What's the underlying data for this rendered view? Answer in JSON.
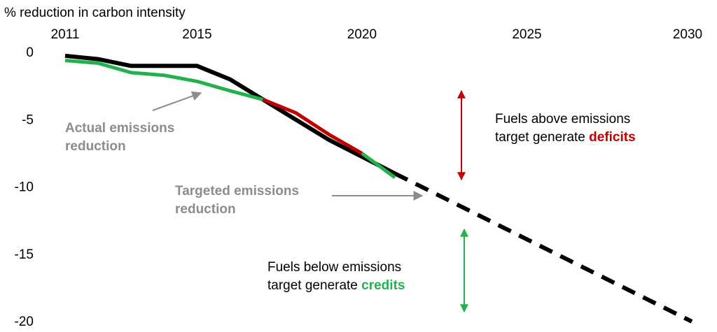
{
  "chart_data": {
    "type": "line",
    "ylabel": "% reduction in carbon intensity",
    "xlim": [
      2010.7,
      2030.3
    ],
    "ylim": [
      -20,
      0
    ],
    "x_ticks": [
      2011,
      2015,
      2020,
      2025,
      2030
    ],
    "y_ticks": [
      0,
      -5,
      -10,
      -15,
      -20
    ],
    "grid": false,
    "series": [
      {
        "name": "Targeted emissions reduction",
        "color": "#000000",
        "style": "solid",
        "x": [
          2011,
          2012,
          2013,
          2014,
          2015,
          2016,
          2017,
          2018,
          2019,
          2020,
          2021
        ],
        "y": [
          -0.25,
          -0.5,
          -1.0,
          -1.0,
          -1.0,
          -2.0,
          -3.5,
          -5.0,
          -6.5,
          -7.75,
          -9.0
        ]
      },
      {
        "name": "Targeted emissions reduction (projected)",
        "color": "#000000",
        "style": "dashed",
        "x": [
          2021,
          2030
        ],
        "y": [
          -9.0,
          -20.0
        ]
      },
      {
        "name": "Actual emissions reduction",
        "color": "#22b14c",
        "style": "solid",
        "x": [
          2011,
          2012,
          2013,
          2014,
          2015,
          2016,
          2017
        ],
        "y": [
          -0.6,
          -0.8,
          -1.5,
          -1.7,
          -2.15,
          -2.85,
          -3.5
        ]
      },
      {
        "name": "Actual emissions reduction (above target)",
        "color": "#c00000",
        "style": "solid",
        "x": [
          2017,
          2018,
          2019,
          2020
        ],
        "y": [
          -3.5,
          -4.5,
          -6.1,
          -7.5
        ]
      },
      {
        "name": "Actual emissions reduction (below target)",
        "color": "#22b14c",
        "style": "solid",
        "x": [
          2020,
          2021
        ],
        "y": [
          -7.5,
          -9.3
        ]
      }
    ],
    "annotations": {
      "actual": {
        "line1": "Actual emissions",
        "line2": "reduction"
      },
      "targeted": {
        "line1": "Targeted emissions",
        "line2": "reduction"
      },
      "above": {
        "line1": "Fuels above emissions",
        "line2_prefix": "target generate ",
        "line2_emph": "deficits"
      },
      "below": {
        "line1": "Fuels below emissions",
        "line2_prefix": "target generate ",
        "line2_emph": "credits"
      }
    },
    "colors": {
      "target": "#000000",
      "actual": "#22b14c",
      "deficit": "#c00000",
      "annotation_gray": "#8c8c8c"
    }
  }
}
